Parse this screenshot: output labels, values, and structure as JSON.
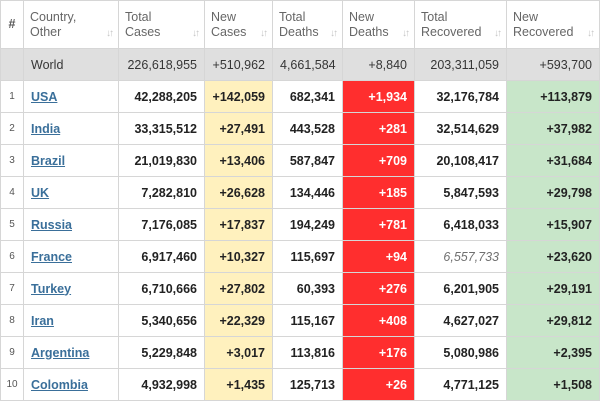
{
  "headers": {
    "idx": "#",
    "country": [
      "Country,",
      "Other"
    ],
    "total_cases": [
      "Total",
      "Cases"
    ],
    "new_cases": [
      "New",
      "Cases"
    ],
    "total_deaths": [
      "Total",
      "Deaths"
    ],
    "new_deaths": [
      "New",
      "Deaths"
    ],
    "total_recovered": [
      "Total",
      "Recovered"
    ],
    "new_recovered": [
      "New",
      "Recovered"
    ]
  },
  "icons": {
    "sort": "sort-arrows-icon"
  },
  "world": {
    "country": "World",
    "total_cases": "226,618,955",
    "new_cases": "+510,962",
    "total_deaths": "4,661,584",
    "new_deaths": "+8,840",
    "total_recovered": "203,311,059",
    "new_recovered": "+593,700"
  },
  "rows": [
    {
      "idx": "1",
      "country": "USA",
      "total_cases": "42,288,205",
      "new_cases": "+142,059",
      "total_deaths": "682,341",
      "new_deaths": "+1,934",
      "total_recovered": "32,176,784",
      "new_recovered": "+113,879"
    },
    {
      "idx": "2",
      "country": "India",
      "total_cases": "33,315,512",
      "new_cases": "+27,491",
      "total_deaths": "443,528",
      "new_deaths": "+281",
      "total_recovered": "32,514,629",
      "new_recovered": "+37,982"
    },
    {
      "idx": "3",
      "country": "Brazil",
      "total_cases": "21,019,830",
      "new_cases": "+13,406",
      "total_deaths": "587,847",
      "new_deaths": "+709",
      "total_recovered": "20,108,417",
      "new_recovered": "+31,684"
    },
    {
      "idx": "4",
      "country": "UK",
      "total_cases": "7,282,810",
      "new_cases": "+26,628",
      "total_deaths": "134,446",
      "new_deaths": "+185",
      "total_recovered": "5,847,593",
      "new_recovered": "+29,798"
    },
    {
      "idx": "5",
      "country": "Russia",
      "total_cases": "7,176,085",
      "new_cases": "+17,837",
      "total_deaths": "194,249",
      "new_deaths": "+781",
      "total_recovered": "6,418,033",
      "new_recovered": "+15,907"
    },
    {
      "idx": "6",
      "country": "France",
      "total_cases": "6,917,460",
      "new_cases": "+10,327",
      "total_deaths": "115,697",
      "new_deaths": "+94",
      "total_recovered": "6,557,733",
      "new_recovered": "+23,620",
      "recovered_estimated": true
    },
    {
      "idx": "7",
      "country": "Turkey",
      "total_cases": "6,710,666",
      "new_cases": "+27,802",
      "total_deaths": "60,393",
      "new_deaths": "+276",
      "total_recovered": "6,201,905",
      "new_recovered": "+29,191"
    },
    {
      "idx": "8",
      "country": "Iran",
      "total_cases": "5,340,656",
      "new_cases": "+22,329",
      "total_deaths": "115,167",
      "new_deaths": "+408",
      "total_recovered": "4,627,027",
      "new_recovered": "+29,812"
    },
    {
      "idx": "9",
      "country": "Argentina",
      "total_cases": "5,229,848",
      "new_cases": "+3,017",
      "total_deaths": "113,816",
      "new_deaths": "+176",
      "total_recovered": "5,080,986",
      "new_recovered": "+2,395"
    },
    {
      "idx": "10",
      "country": "Colombia",
      "total_cases": "4,932,998",
      "new_cases": "+1,435",
      "total_deaths": "125,713",
      "new_deaths": "+26",
      "total_recovered": "4,771,125",
      "new_recovered": "+1,508"
    }
  ],
  "colors": {
    "new_cases_bg": "#fff1be",
    "new_deaths_bg": "#ff2e2e",
    "new_recovered_bg": "#c8e6c9",
    "world_row_bg": "#dfdfdf",
    "country_link": "#3a6f9a"
  }
}
